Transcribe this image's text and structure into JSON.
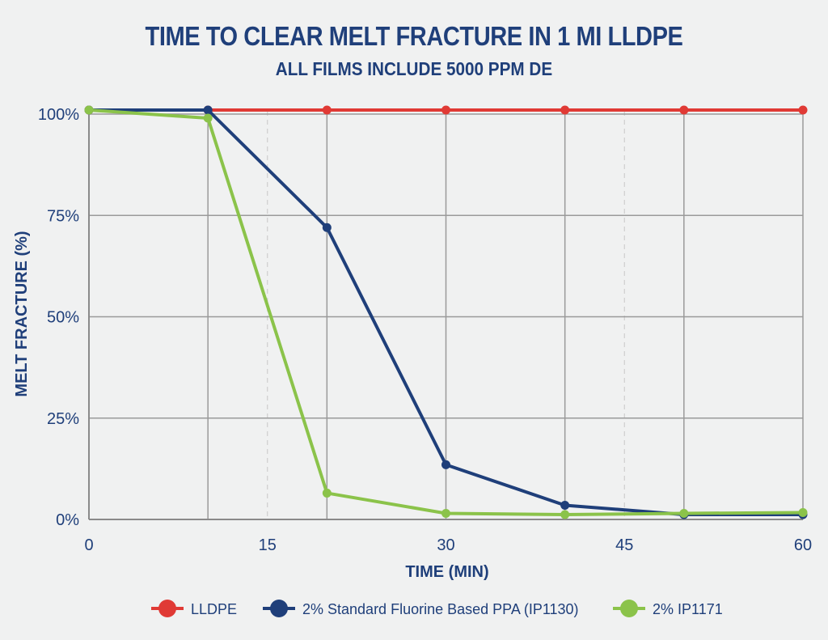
{
  "chart_data": {
    "type": "line",
    "title": "TIME TO CLEAR MELT FRACTURE IN 1 MI LLDPE",
    "subtitle": "ALL FILMS INCLUDE 5000 PPM DE",
    "xlabel": "TIME (MIN)",
    "ylabel": "MELT FRACTURE (%)",
    "x_ticks": [
      "0",
      "15",
      "30",
      "45",
      "60"
    ],
    "x_tick_values": [
      0,
      15,
      30,
      45,
      60
    ],
    "y_ticks": [
      "0%",
      "25%",
      "50%",
      "75%",
      "100%"
    ],
    "y_tick_values": [
      0,
      25,
      50,
      75,
      100
    ],
    "xlim": [
      0,
      60
    ],
    "ylim": [
      0,
      100
    ],
    "grid": true,
    "legend_position": "bottom",
    "x": [
      0,
      10,
      20,
      30,
      40,
      50,
      60
    ],
    "series": [
      {
        "name": "LLDPE",
        "color": "#e03a35",
        "values": [
          101,
          101,
          101,
          101,
          101,
          101,
          101
        ]
      },
      {
        "name": "2% Standard Fluorine Based PPA (IP1130)",
        "color": "#1f3f7a",
        "values": [
          101,
          101,
          72,
          13.5,
          3.5,
          1.2,
          1.2
        ]
      },
      {
        "name": "2% IP1171",
        "color": "#8bc34a",
        "values": [
          101,
          99,
          6.5,
          1.5,
          1.2,
          1.5,
          1.7
        ]
      }
    ]
  }
}
